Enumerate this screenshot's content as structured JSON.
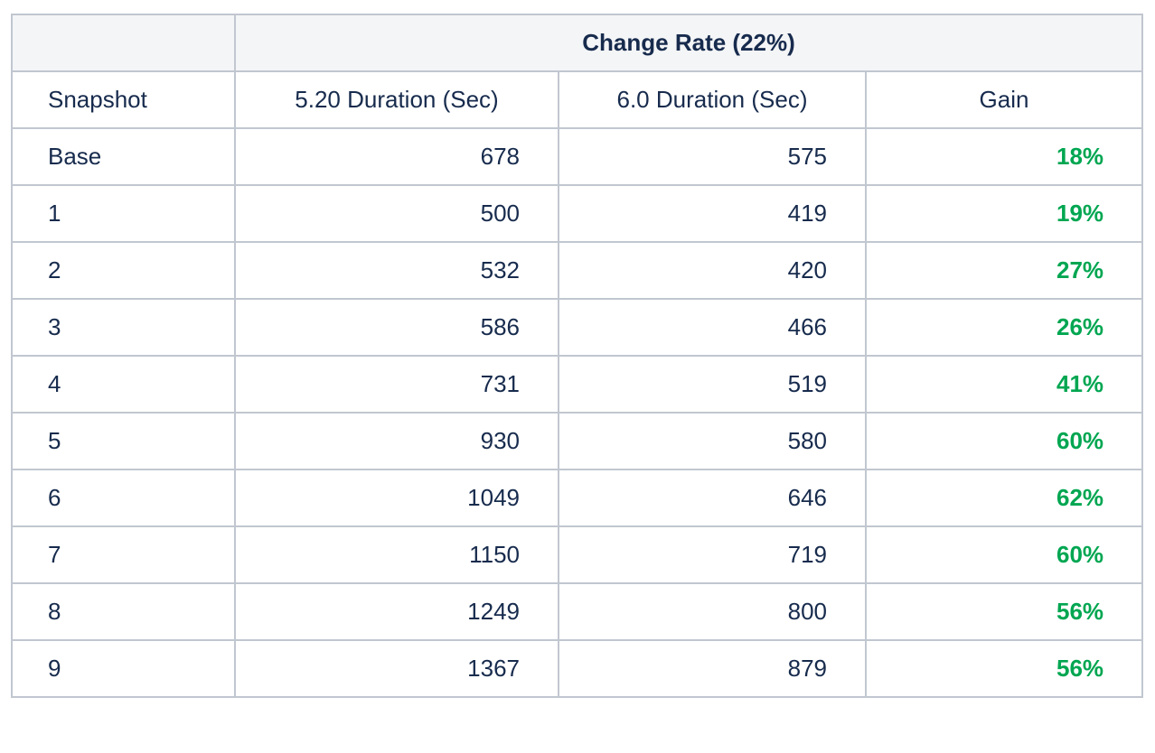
{
  "table": {
    "group_header": "Change Rate (22%)",
    "columns": [
      "Snapshot",
      "5.20 Duration (Sec)",
      "6.0 Duration (Sec)",
      "Gain"
    ],
    "rows": [
      {
        "snapshot": "Base",
        "d520": "678",
        "d60": "575",
        "gain": "18%"
      },
      {
        "snapshot": "1",
        "d520": "500",
        "d60": "419",
        "gain": "19%"
      },
      {
        "snapshot": "2",
        "d520": "532",
        "d60": "420",
        "gain": "27%"
      },
      {
        "snapshot": "3",
        "d520": "586",
        "d60": "466",
        "gain": "26%"
      },
      {
        "snapshot": "4",
        "d520": "731",
        "d60": "519",
        "gain": "41%"
      },
      {
        "snapshot": "5",
        "d520": "930",
        "d60": "580",
        "gain": "60%"
      },
      {
        "snapshot": "6",
        "d520": "1049",
        "d60": "646",
        "gain": "62%"
      },
      {
        "snapshot": "7",
        "d520": "1150",
        "d60": "719",
        "gain": "60%"
      },
      {
        "snapshot": "8",
        "d520": "1249",
        "d60": "800",
        "gain": "56%"
      },
      {
        "snapshot": "9",
        "d520": "1367",
        "d60": "879",
        "gain": "56%"
      }
    ]
  },
  "colors": {
    "gain_text": "#00a651",
    "header_bg": "#f4f5f7",
    "border": "#c1c7d0",
    "text": "#172b4d"
  }
}
